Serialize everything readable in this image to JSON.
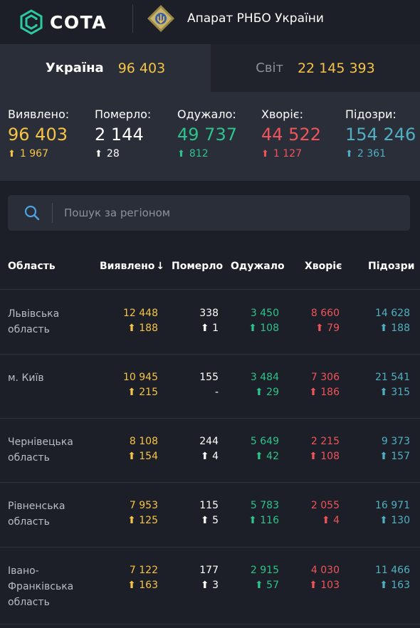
{
  "header": {
    "logo_text": "COTA",
    "org_name": "Апарат РНБО України"
  },
  "tabs": [
    {
      "label": "Україна",
      "value": "96 403",
      "active": true
    },
    {
      "label": "Світ",
      "value": "22 145 393",
      "active": false
    }
  ],
  "stats": [
    {
      "label": "Виявлено:",
      "value": "96 403",
      "delta": "1 967",
      "color": "#f6c445"
    },
    {
      "label": "Померло:",
      "value": "2 144",
      "delta": "28",
      "color": "#ffffff"
    },
    {
      "label": "Одужало:",
      "value": "49 737",
      "delta": "812",
      "color": "#2cc38c"
    },
    {
      "label": "Хворіє:",
      "value": "44 522",
      "delta": "1 127",
      "color": "#f0545b"
    },
    {
      "label": "Підозри:",
      "value": "154 246",
      "delta": "2 361",
      "color": "#4fb0c3"
    }
  ],
  "search": {
    "placeholder": "Пошук за регіоном",
    "icon": "search-icon"
  },
  "table": {
    "columns": [
      "Область",
      "Виявлено",
      "Померло",
      "Одужало",
      "Хворіє",
      "Підозри"
    ],
    "sort_indicator": "↓",
    "rows": [
      {
        "region": "Львівська область",
        "confirmed": "12 448",
        "confirmed_d": "188",
        "deaths": "338",
        "deaths_d": "1",
        "recovered": "3 450",
        "recovered_d": "108",
        "sick": "8 660",
        "sick_d": "79",
        "suspected": "14 628",
        "suspected_d": "188"
      },
      {
        "region": "м. Київ",
        "confirmed": "10 945",
        "confirmed_d": "215",
        "deaths": "155",
        "deaths_d": "-",
        "recovered": "3 484",
        "recovered_d": "29",
        "sick": "7 306",
        "sick_d": "186",
        "suspected": "21 541",
        "suspected_d": "315"
      },
      {
        "region": "Чернівецька область",
        "confirmed": "8 108",
        "confirmed_d": "154",
        "deaths": "244",
        "deaths_d": "4",
        "recovered": "5 649",
        "recovered_d": "42",
        "sick": "2 215",
        "sick_d": "108",
        "suspected": "9 373",
        "suspected_d": "157"
      },
      {
        "region": "Рівненська область",
        "confirmed": "7 953",
        "confirmed_d": "125",
        "deaths": "115",
        "deaths_d": "5",
        "recovered": "5 783",
        "recovered_d": "116",
        "sick": "2 055",
        "sick_d": "4",
        "suspected": "16 971",
        "suspected_d": "130"
      },
      {
        "region": "Івано-Франківська область",
        "confirmed": "7 122",
        "confirmed_d": "163",
        "deaths": "177",
        "deaths_d": "3",
        "recovered": "2 915",
        "recovered_d": "57",
        "sick": "4 030",
        "sick_d": "103",
        "suspected": "11 466",
        "suspected_d": "163"
      }
    ]
  },
  "colors": {
    "confirmed": "#f6c445",
    "deaths": "#ffffff",
    "recovered": "#2cc38c",
    "sick": "#f0545b",
    "suspected": "#4fb0c3"
  }
}
